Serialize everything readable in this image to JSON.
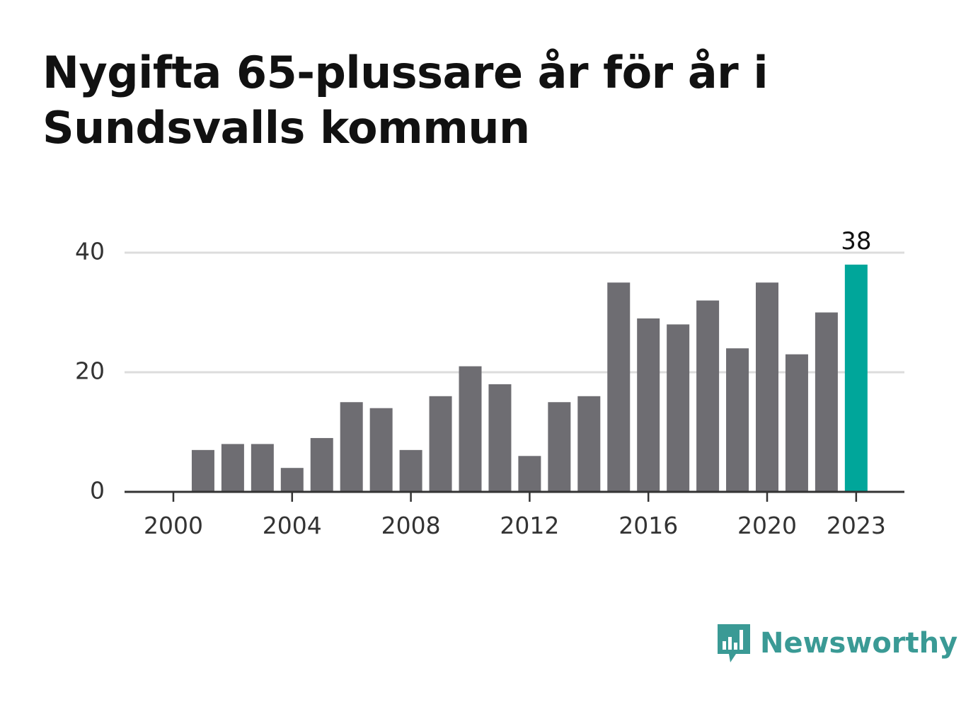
{
  "title": "Nygifta 65-plussare år för år i Sundsvalls kommun",
  "brand": {
    "name": "Newsworthy",
    "color": "#3a9a95"
  },
  "colors": {
    "bar": "#6e6d72",
    "highlight": "#00a69a",
    "grid": "#dcdcdc",
    "axis": "#333333"
  },
  "chart_data": {
    "type": "bar",
    "categories": [
      2000,
      2001,
      2002,
      2003,
      2004,
      2005,
      2006,
      2007,
      2008,
      2009,
      2010,
      2011,
      2012,
      2013,
      2014,
      2015,
      2016,
      2017,
      2018,
      2019,
      2020,
      2021,
      2022,
      2023
    ],
    "values": [
      0,
      7,
      8,
      8,
      4,
      9,
      15,
      14,
      7,
      16,
      21,
      18,
      6,
      15,
      16,
      35,
      29,
      28,
      32,
      24,
      35,
      23,
      30,
      38
    ],
    "x_ticks": [
      "2000",
      "2004",
      "2008",
      "2012",
      "2016",
      "2020",
      "2023"
    ],
    "y_ticks": [
      0,
      20,
      40
    ],
    "ylim": [
      0,
      40
    ],
    "highlight": {
      "category": 2023,
      "label": "38"
    },
    "grid": true,
    "xlabel": "",
    "ylabel": ""
  }
}
